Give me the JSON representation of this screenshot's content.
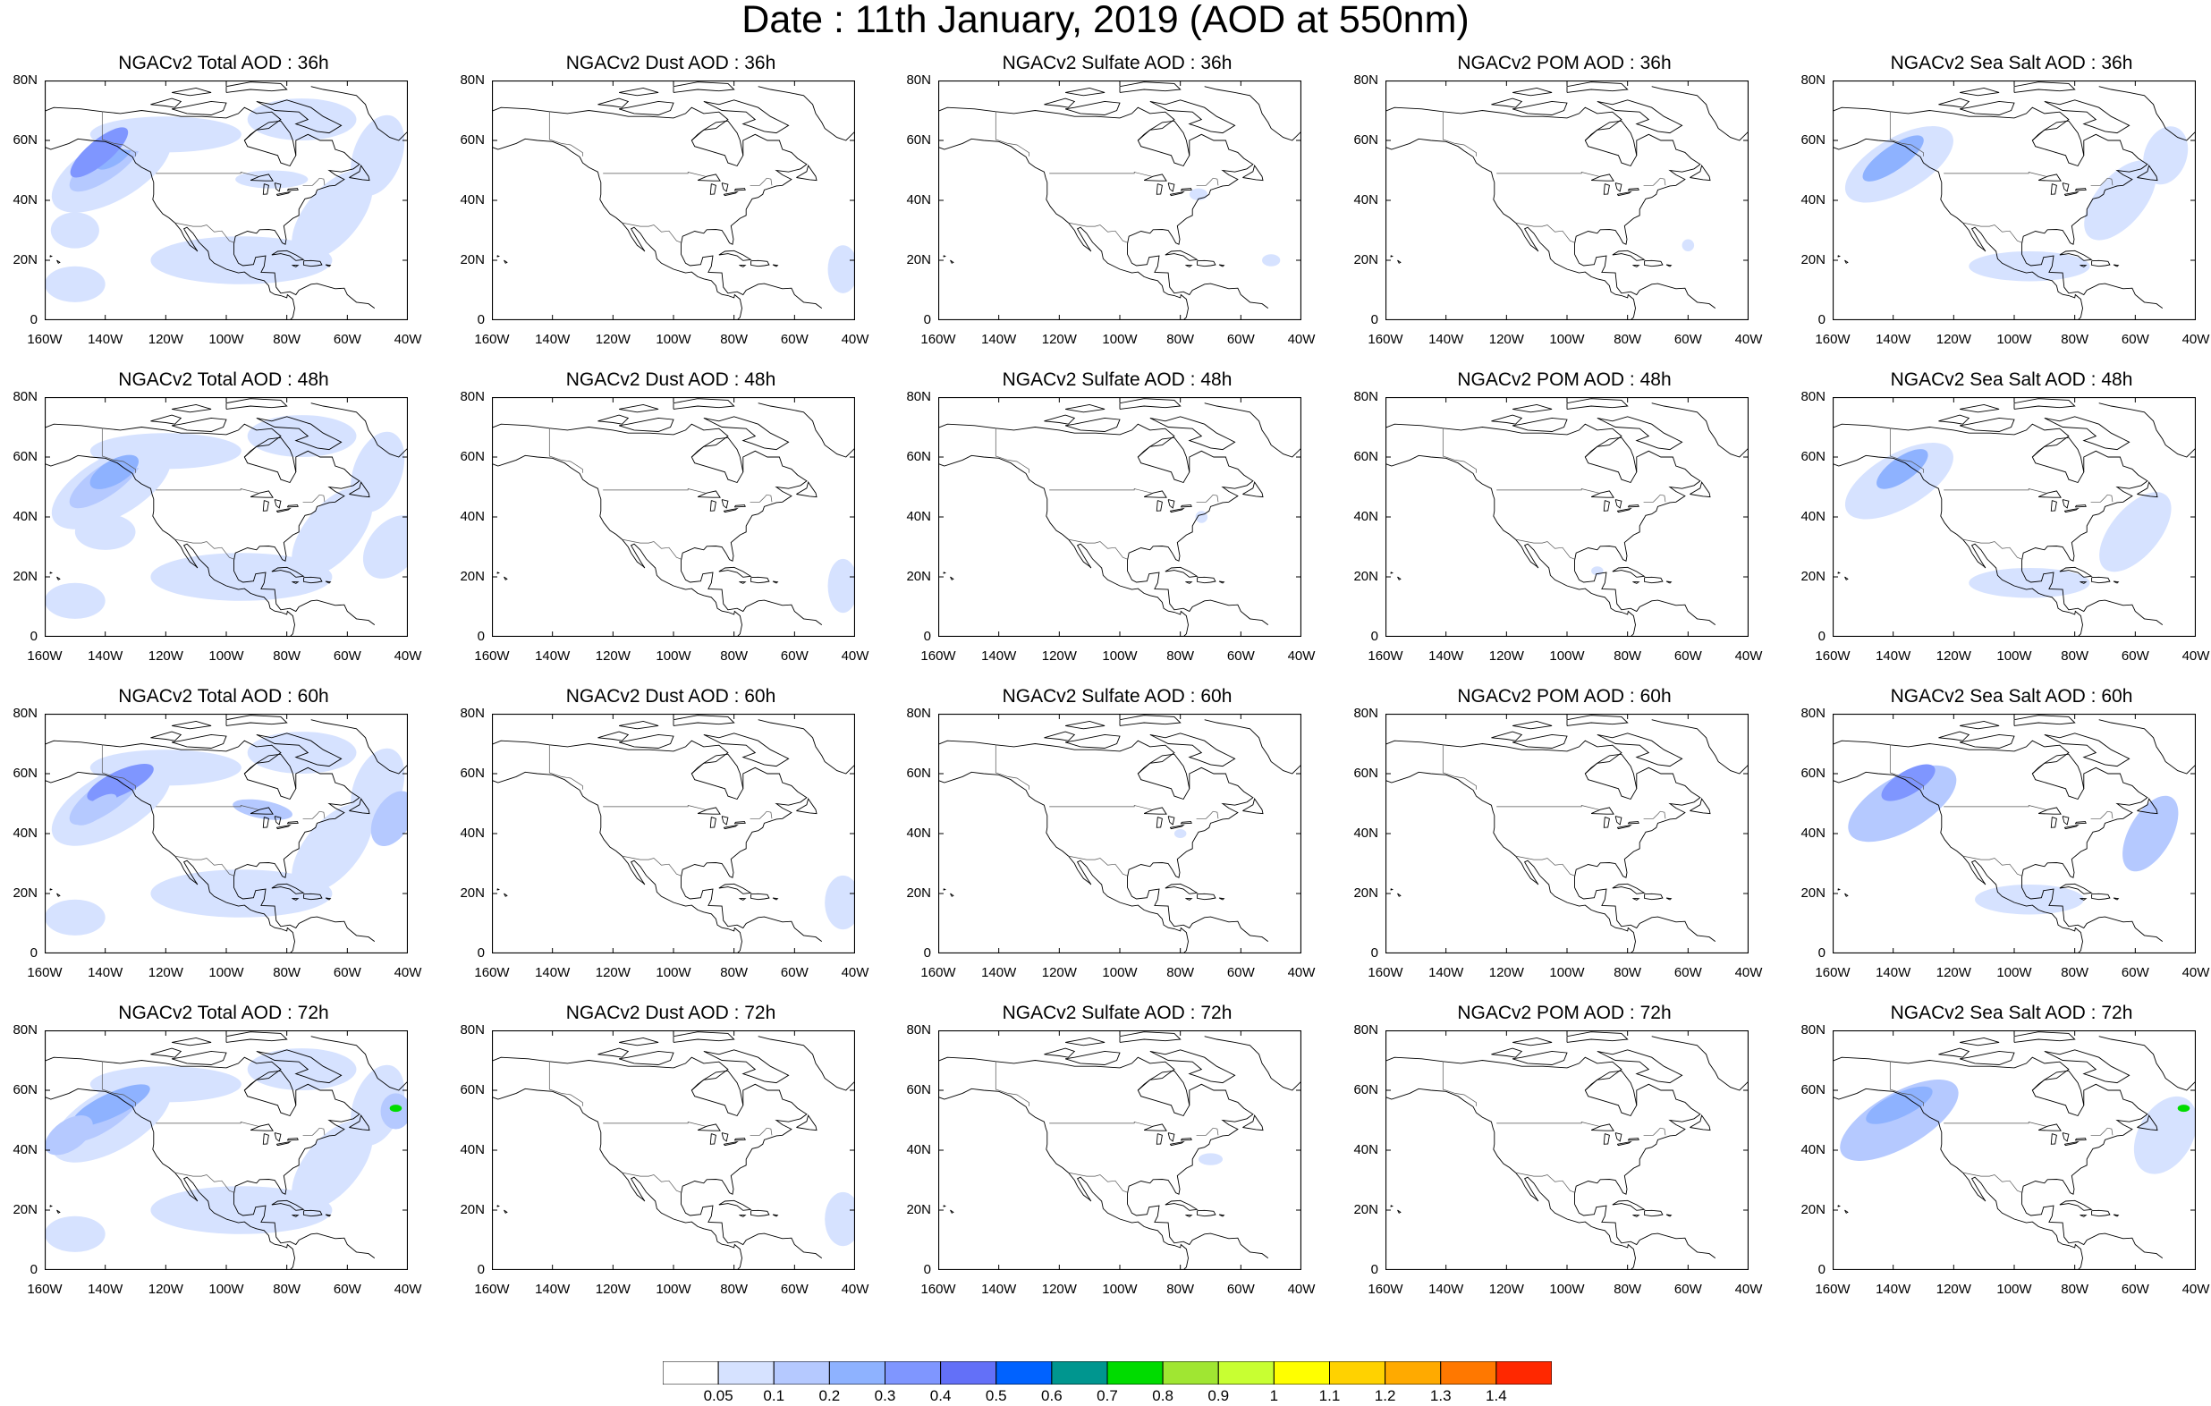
{
  "title": "Date : 11th January, 2019 (AOD at 550nm)",
  "panels": [
    {
      "title": "NGACv2 Total AOD : 36h",
      "species": "total",
      "hour": 36
    },
    {
      "title": "NGACv2 Dust AOD : 36h",
      "species": "dust",
      "hour": 36
    },
    {
      "title": "NGACv2 Sulfate AOD : 36h",
      "species": "sulfate",
      "hour": 36
    },
    {
      "title": "NGACv2 POM AOD : 36h",
      "species": "pom",
      "hour": 36
    },
    {
      "title": "NGACv2 Sea Salt AOD : 36h",
      "species": "seasalt",
      "hour": 36
    },
    {
      "title": "NGACv2 Total AOD : 48h",
      "species": "total",
      "hour": 48
    },
    {
      "title": "NGACv2 Dust AOD : 48h",
      "species": "dust",
      "hour": 48
    },
    {
      "title": "NGACv2 Sulfate AOD : 48h",
      "species": "sulfate",
      "hour": 48
    },
    {
      "title": "NGACv2 POM AOD : 48h",
      "species": "pom",
      "hour": 48
    },
    {
      "title": "NGACv2 Sea Salt AOD : 48h",
      "species": "seasalt",
      "hour": 48
    },
    {
      "title": "NGACv2 Total AOD : 60h",
      "species": "total",
      "hour": 60
    },
    {
      "title": "NGACv2 Dust AOD : 60h",
      "species": "dust",
      "hour": 60
    },
    {
      "title": "NGACv2 Sulfate AOD : 60h",
      "species": "sulfate",
      "hour": 60
    },
    {
      "title": "NGACv2 POM AOD : 60h",
      "species": "pom",
      "hour": 60
    },
    {
      "title": "NGACv2 Sea Salt AOD : 60h",
      "species": "seasalt",
      "hour": 60
    },
    {
      "title": "NGACv2 Total AOD : 72h",
      "species": "total",
      "hour": 72
    },
    {
      "title": "NGACv2 Dust AOD : 72h",
      "species": "dust",
      "hour": 72
    },
    {
      "title": "NGACv2 Sulfate AOD : 72h",
      "species": "sulfate",
      "hour": 72
    },
    {
      "title": "NGACv2 POM AOD : 72h",
      "species": "pom",
      "hour": 72
    },
    {
      "title": "NGACv2 Sea Salt  AOD : 72h",
      "species": "seasalt",
      "hour": 72
    }
  ],
  "map": {
    "lon_range": [
      -160,
      -40
    ],
    "lat_range": [
      0,
      80
    ],
    "lat_ticks": [
      "0",
      "20N",
      "40N",
      "60N",
      "80N"
    ],
    "lon_ticks": [
      "160W",
      "140W",
      "120W",
      "100W",
      "80W",
      "60W",
      "40W"
    ]
  },
  "colorbar": {
    "labels": [
      "0.05",
      "0.1",
      "0.2",
      "0.3",
      "0.4",
      "0.5",
      "0.6",
      "0.7",
      "0.8",
      "0.9",
      "1",
      "1.1",
      "1.2",
      "1.3",
      "1.4"
    ],
    "colors": [
      "#ffffff",
      "#d6e2ff",
      "#b5c9ff",
      "#8eb2ff",
      "#7f96ff",
      "#6370f8",
      "#0062ff",
      "#00968f",
      "#00dc00",
      "#a0e632",
      "#c8ff32",
      "#ffff00",
      "#ffd200",
      "#ffaa00",
      "#ff7800",
      "#ff2800"
    ]
  }
}
